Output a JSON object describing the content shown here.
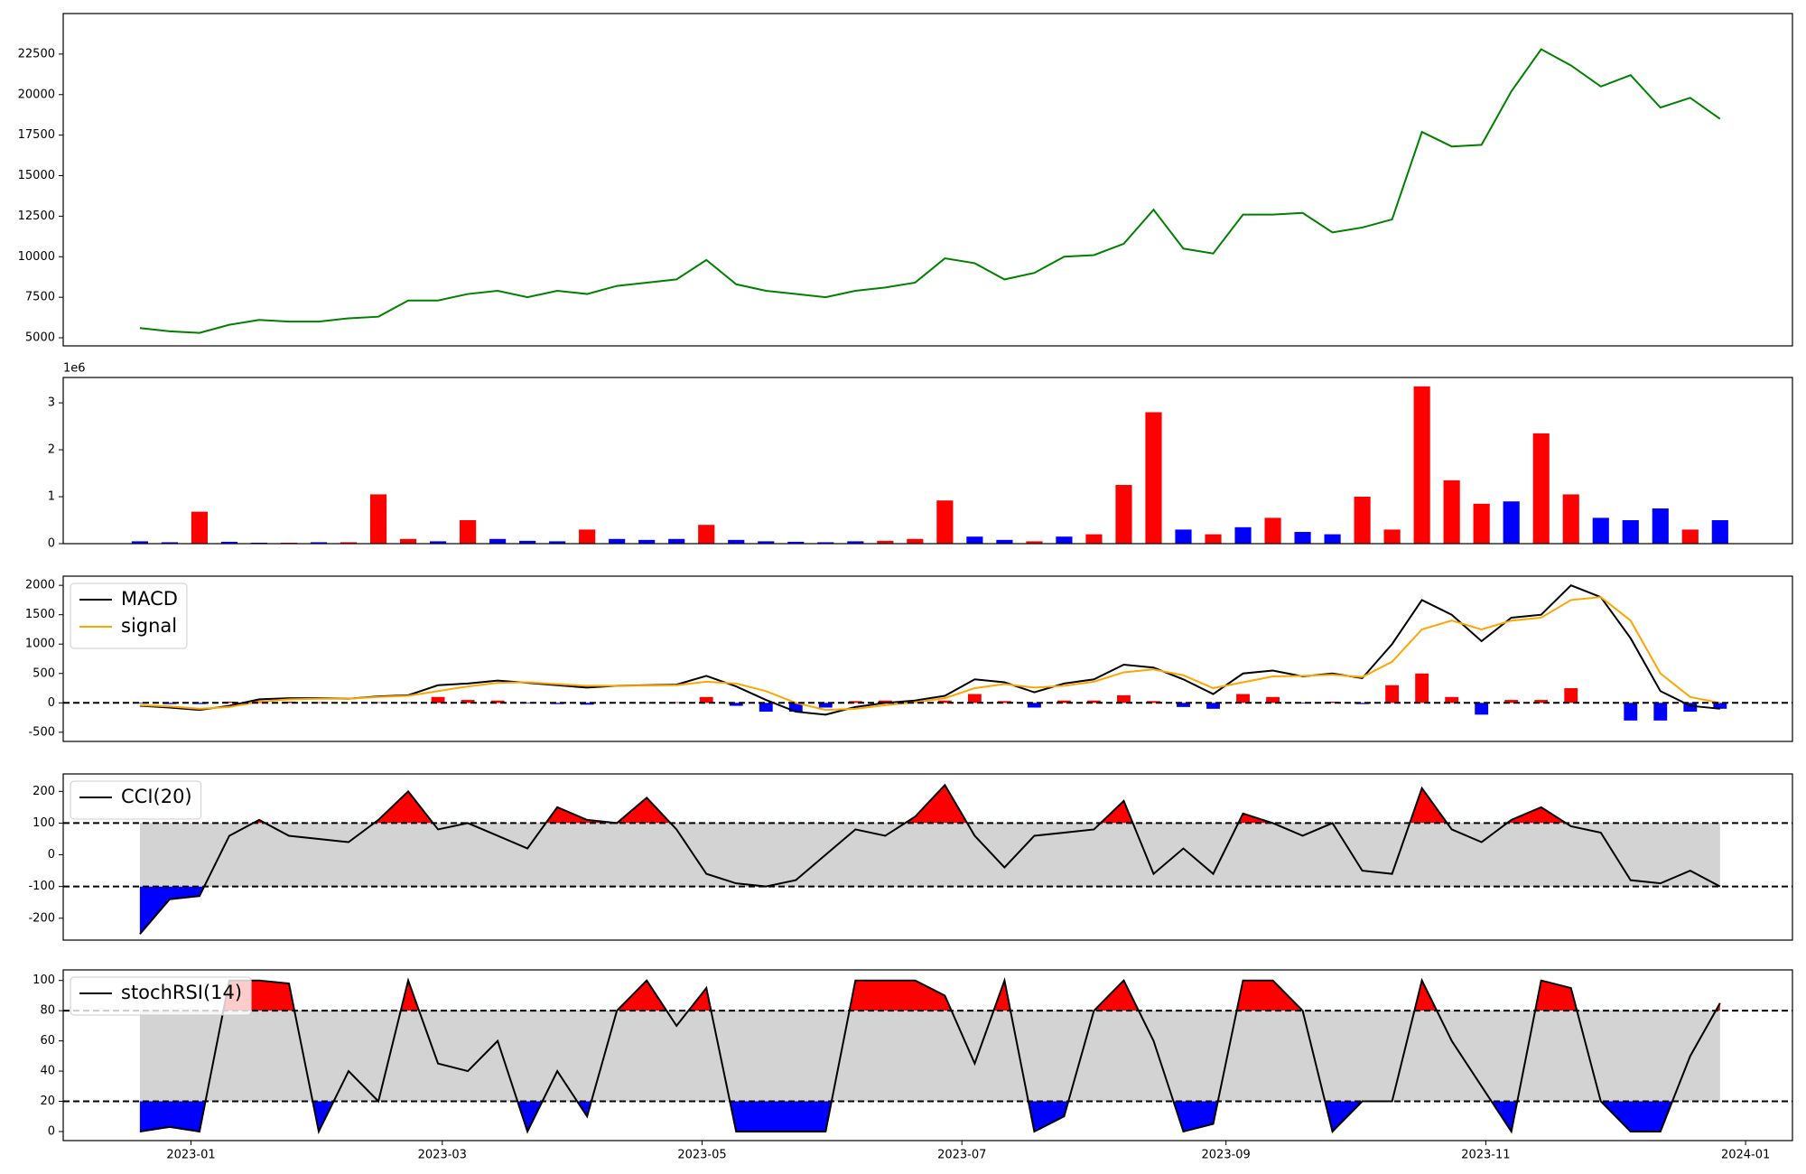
{
  "chart_data": [
    {
      "type": "line",
      "xlim": [
        "2022-12-02",
        "2024-01-12"
      ],
      "ylim": [
        4500,
        25000
      ],
      "yticks": [
        5000,
        7500,
        10000,
        12500,
        15000,
        17500,
        20000,
        22500
      ],
      "x": [
        "2022-12-20",
        "2022-12-27",
        "2023-01-03",
        "2023-01-10",
        "2023-01-17",
        "2023-01-24",
        "2023-01-31",
        "2023-02-07",
        "2023-02-14",
        "2023-02-21",
        "2023-02-28",
        "2023-03-07",
        "2023-03-14",
        "2023-03-21",
        "2023-03-28",
        "2023-04-04",
        "2023-04-11",
        "2023-04-18",
        "2023-04-25",
        "2023-05-02",
        "2023-05-09",
        "2023-05-16",
        "2023-05-23",
        "2023-05-30",
        "2023-06-06",
        "2023-06-13",
        "2023-06-20",
        "2023-06-27",
        "2023-07-04",
        "2023-07-11",
        "2023-07-18",
        "2023-07-25",
        "2023-08-01",
        "2023-08-08",
        "2023-08-15",
        "2023-08-22",
        "2023-08-29",
        "2023-09-05",
        "2023-09-12",
        "2023-09-19",
        "2023-09-26",
        "2023-10-03",
        "2023-10-10",
        "2023-10-17",
        "2023-10-24",
        "2023-10-31",
        "2023-11-07",
        "2023-11-14",
        "2023-11-21",
        "2023-11-28",
        "2023-12-05",
        "2023-12-12",
        "2023-12-19",
        "2023-12-26"
      ],
      "series": [
        {
          "color": "#008000",
          "values": [
            5600,
            5400,
            5300,
            5800,
            6100,
            6000,
            6000,
            6200,
            6300,
            7300,
            7300,
            7700,
            7900,
            7500,
            7900,
            7700,
            8200,
            8400,
            8600,
            9800,
            8300,
            7900,
            7700,
            7500,
            7900,
            8100,
            8400,
            9900,
            9600,
            8600,
            9000,
            10000,
            10100,
            10800,
            12900,
            10500,
            10200,
            12600,
            12600,
            12700,
            11500,
            11800,
            12300,
            17700,
            16800,
            16900,
            20200,
            22800,
            21800,
            20500,
            21200,
            19200,
            19800,
            18500
          ]
        }
      ]
    },
    {
      "type": "bar",
      "xlim": [
        "2022-12-02",
        "2024-01-12"
      ],
      "ylim": [
        0,
        3.54
      ],
      "yticks": [
        0,
        1,
        2,
        3
      ],
      "offset_text": "1e6",
      "x": [
        "2022-12-20",
        "2022-12-27",
        "2023-01-03",
        "2023-01-10",
        "2023-01-17",
        "2023-01-24",
        "2023-01-31",
        "2023-02-07",
        "2023-02-14",
        "2023-02-21",
        "2023-02-28",
        "2023-03-07",
        "2023-03-14",
        "2023-03-21",
        "2023-03-28",
        "2023-04-04",
        "2023-04-11",
        "2023-04-18",
        "2023-04-25",
        "2023-05-02",
        "2023-05-09",
        "2023-05-16",
        "2023-05-23",
        "2023-05-30",
        "2023-06-06",
        "2023-06-13",
        "2023-06-20",
        "2023-06-27",
        "2023-07-04",
        "2023-07-11",
        "2023-07-18",
        "2023-07-25",
        "2023-08-01",
        "2023-08-08",
        "2023-08-15",
        "2023-08-22",
        "2023-08-29",
        "2023-09-05",
        "2023-09-12",
        "2023-09-19",
        "2023-09-26",
        "2023-10-03",
        "2023-10-10",
        "2023-10-17",
        "2023-10-24",
        "2023-10-31",
        "2023-11-07",
        "2023-11-14",
        "2023-11-21",
        "2023-11-28",
        "2023-12-05",
        "2023-12-12",
        "2023-12-19",
        "2023-12-26"
      ],
      "values": [
        0.05,
        0.03,
        0.68,
        0.04,
        0.02,
        0.02,
        0.03,
        0.03,
        1.05,
        0.1,
        0.05,
        0.5,
        0.1,
        0.06,
        0.05,
        0.3,
        0.1,
        0.08,
        0.1,
        0.4,
        0.08,
        0.05,
        0.04,
        0.03,
        0.05,
        0.06,
        0.1,
        0.92,
        0.15,
        0.08,
        0.05,
        0.15,
        0.2,
        1.25,
        2.8,
        0.3,
        0.2,
        0.35,
        0.55,
        0.25,
        0.2,
        1.0,
        0.3,
        3.35,
        1.35,
        0.85,
        0.9,
        2.35,
        1.05,
        0.55,
        0.5,
        0.75,
        0.3,
        0.5
      ],
      "colors": [
        "blue",
        "blue",
        "red",
        "blue",
        "blue",
        "red",
        "blue",
        "red",
        "red",
        "red",
        "blue",
        "red",
        "blue",
        "blue",
        "blue",
        "red",
        "blue",
        "blue",
        "blue",
        "red",
        "blue",
        "blue",
        "blue",
        "blue",
        "blue",
        "red",
        "red",
        "red",
        "blue",
        "blue",
        "red",
        "blue",
        "red",
        "red",
        "red",
        "blue",
        "red",
        "blue",
        "red",
        "blue",
        "blue",
        "red",
        "red",
        "red",
        "red",
        "red",
        "blue",
        "red",
        "red",
        "blue",
        "blue",
        "blue",
        "red",
        "blue"
      ]
    },
    {
      "type": "line",
      "xlim": [
        "2022-12-02",
        "2024-01-12"
      ],
      "ylim": [
        -656,
        2156
      ],
      "yticks": [
        -500,
        0,
        500,
        1000,
        1500,
        2000
      ],
      "hlines": [
        0
      ],
      "legend": "upper left",
      "pos_color": "red",
      "neg_color": "blue",
      "x": [
        "2022-12-20",
        "2022-12-27",
        "2023-01-03",
        "2023-01-10",
        "2023-01-17",
        "2023-01-24",
        "2023-01-31",
        "2023-02-07",
        "2023-02-14",
        "2023-02-21",
        "2023-02-28",
        "2023-03-07",
        "2023-03-14",
        "2023-03-21",
        "2023-03-28",
        "2023-04-04",
        "2023-04-11",
        "2023-04-18",
        "2023-04-25",
        "2023-05-02",
        "2023-05-09",
        "2023-05-16",
        "2023-05-23",
        "2023-05-30",
        "2023-06-06",
        "2023-06-13",
        "2023-06-20",
        "2023-06-27",
        "2023-07-04",
        "2023-07-11",
        "2023-07-18",
        "2023-07-25",
        "2023-08-01",
        "2023-08-08",
        "2023-08-15",
        "2023-08-22",
        "2023-08-29",
        "2023-09-05",
        "2023-09-12",
        "2023-09-19",
        "2023-09-26",
        "2023-10-03",
        "2023-10-10",
        "2023-10-17",
        "2023-10-24",
        "2023-10-31",
        "2023-11-07",
        "2023-11-14",
        "2023-11-21",
        "2023-11-28",
        "2023-12-05",
        "2023-12-12",
        "2023-12-19",
        "2023-12-26"
      ],
      "histogram": [
        -10,
        -20,
        -20,
        20,
        40,
        20,
        10,
        0,
        10,
        10,
        100,
        50,
        40,
        -10,
        -20,
        -30,
        0,
        5,
        10,
        100,
        -50,
        -150,
        -150,
        -80,
        30,
        40,
        30,
        40,
        150,
        30,
        -80,
        40,
        40,
        130,
        30,
        -70,
        -100,
        150,
        100,
        -10,
        20,
        -20,
        300,
        500,
        100,
        -200,
        50,
        50,
        250,
        0,
        -300,
        -300,
        -150,
        -100
      ],
      "series": [
        {
          "name": "MACD",
          "color": "#000000",
          "values": [
            -50,
            -80,
            -120,
            -50,
            60,
            80,
            80,
            70,
            110,
            130,
            300,
            330,
            380,
            340,
            300,
            260,
            290,
            300,
            310,
            460,
            280,
            50,
            -150,
            -200,
            -70,
            0,
            40,
            120,
            400,
            350,
            180,
            330,
            400,
            650,
            600,
            400,
            150,
            500,
            550,
            450,
            500,
            420,
            1000,
            1750,
            1500,
            1050,
            1450,
            1500,
            2000,
            1800,
            1100,
            200,
            -50,
            -100
          ]
        },
        {
          "name": "signal",
          "color": "#ffa500",
          "values": [
            -40,
            -60,
            -100,
            -70,
            20,
            60,
            70,
            70,
            100,
            120,
            200,
            280,
            340,
            350,
            320,
            290,
            290,
            295,
            300,
            360,
            330,
            200,
            0,
            -120,
            -100,
            -40,
            10,
            80,
            250,
            320,
            260,
            290,
            360,
            520,
            570,
            470,
            250,
            350,
            450,
            460,
            480,
            440,
            700,
            1250,
            1400,
            1250,
            1400,
            1450,
            1750,
            1800,
            1400,
            500,
            100,
            0
          ]
        }
      ]
    },
    {
      "type": "line",
      "xlim": [
        "2022-12-02",
        "2024-01-12"
      ],
      "ylim": [
        -269,
        255
      ],
      "yticks": [
        -200,
        -100,
        0,
        100,
        200
      ],
      "hlines": [
        -100,
        100
      ],
      "band_color": "#d3d3d3",
      "above_color": "red",
      "below_color": "blue",
      "legend": "upper left",
      "x": [
        "2022-12-20",
        "2022-12-27",
        "2023-01-03",
        "2023-01-10",
        "2023-01-17",
        "2023-01-24",
        "2023-01-31",
        "2023-02-07",
        "2023-02-14",
        "2023-02-21",
        "2023-02-28",
        "2023-03-07",
        "2023-03-14",
        "2023-03-21",
        "2023-03-28",
        "2023-04-04",
        "2023-04-11",
        "2023-04-18",
        "2023-04-25",
        "2023-05-02",
        "2023-05-09",
        "2023-05-16",
        "2023-05-23",
        "2023-05-30",
        "2023-06-06",
        "2023-06-13",
        "2023-06-20",
        "2023-06-27",
        "2023-07-04",
        "2023-07-11",
        "2023-07-18",
        "2023-07-25",
        "2023-08-01",
        "2023-08-08",
        "2023-08-15",
        "2023-08-22",
        "2023-08-29",
        "2023-09-05",
        "2023-09-12",
        "2023-09-19",
        "2023-09-26",
        "2023-10-03",
        "2023-10-10",
        "2023-10-17",
        "2023-10-24",
        "2023-10-31",
        "2023-11-07",
        "2023-11-14",
        "2023-11-21",
        "2023-11-28",
        "2023-12-05",
        "2023-12-12",
        "2023-12-19",
        "2023-12-26"
      ],
      "series": [
        {
          "name": "CCI(20)",
          "color": "#000000",
          "values": [
            -250,
            -140,
            -130,
            60,
            110,
            60,
            50,
            40,
            110,
            200,
            80,
            100,
            60,
            20,
            150,
            110,
            100,
            180,
            80,
            -60,
            -90,
            -100,
            -80,
            0,
            80,
            60,
            120,
            220,
            60,
            -40,
            60,
            70,
            80,
            170,
            -60,
            20,
            -60,
            130,
            100,
            60,
            100,
            -50,
            -60,
            210,
            80,
            40,
            110,
            150,
            90,
            70,
            -80,
            -90,
            -50,
            -100
          ]
        }
      ]
    },
    {
      "type": "line",
      "xlim": [
        "2022-12-02",
        "2024-01-12"
      ],
      "ylim": [
        -6,
        107
      ],
      "yticks": [
        0,
        20,
        40,
        60,
        80,
        100
      ],
      "hlines": [
        20,
        80
      ],
      "band_color": "#d3d3d3",
      "above_color": "red",
      "below_color": "blue",
      "legend": "upper left",
      "xticks": [
        "2023-01",
        "2023-03",
        "2023-05",
        "2023-07",
        "2023-09",
        "2023-11",
        "2024-01"
      ],
      "x": [
        "2022-12-20",
        "2022-12-27",
        "2023-01-03",
        "2023-01-10",
        "2023-01-17",
        "2023-01-24",
        "2023-01-31",
        "2023-02-07",
        "2023-02-14",
        "2023-02-21",
        "2023-02-28",
        "2023-03-07",
        "2023-03-14",
        "2023-03-21",
        "2023-03-28",
        "2023-04-04",
        "2023-04-11",
        "2023-04-18",
        "2023-04-25",
        "2023-05-02",
        "2023-05-09",
        "2023-05-16",
        "2023-05-23",
        "2023-05-30",
        "2023-06-06",
        "2023-06-13",
        "2023-06-20",
        "2023-06-27",
        "2023-07-04",
        "2023-07-11",
        "2023-07-18",
        "2023-07-25",
        "2023-08-01",
        "2023-08-08",
        "2023-08-15",
        "2023-08-22",
        "2023-08-29",
        "2023-09-05",
        "2023-09-12",
        "2023-09-19",
        "2023-09-26",
        "2023-10-03",
        "2023-10-10",
        "2023-10-17",
        "2023-10-24",
        "2023-10-31",
        "2023-11-07",
        "2023-11-14",
        "2023-11-21",
        "2023-11-28",
        "2023-12-05",
        "2023-12-12",
        "2023-12-19",
        "2023-12-26"
      ],
      "series": [
        {
          "name": "stochRSI(14)",
          "color": "#000000",
          "values": [
            0,
            3,
            0,
            100,
            100,
            98,
            0,
            40,
            20,
            100,
            45,
            40,
            60,
            0,
            40,
            10,
            80,
            100,
            70,
            95,
            0,
            0,
            0,
            0,
            100,
            100,
            100,
            90,
            45,
            100,
            0,
            10,
            80,
            100,
            60,
            0,
            5,
            100,
            100,
            80,
            0,
            20,
            20,
            100,
            60,
            30,
            0,
            100,
            95,
            20,
            0,
            0,
            50,
            85
          ]
        }
      ]
    }
  ]
}
